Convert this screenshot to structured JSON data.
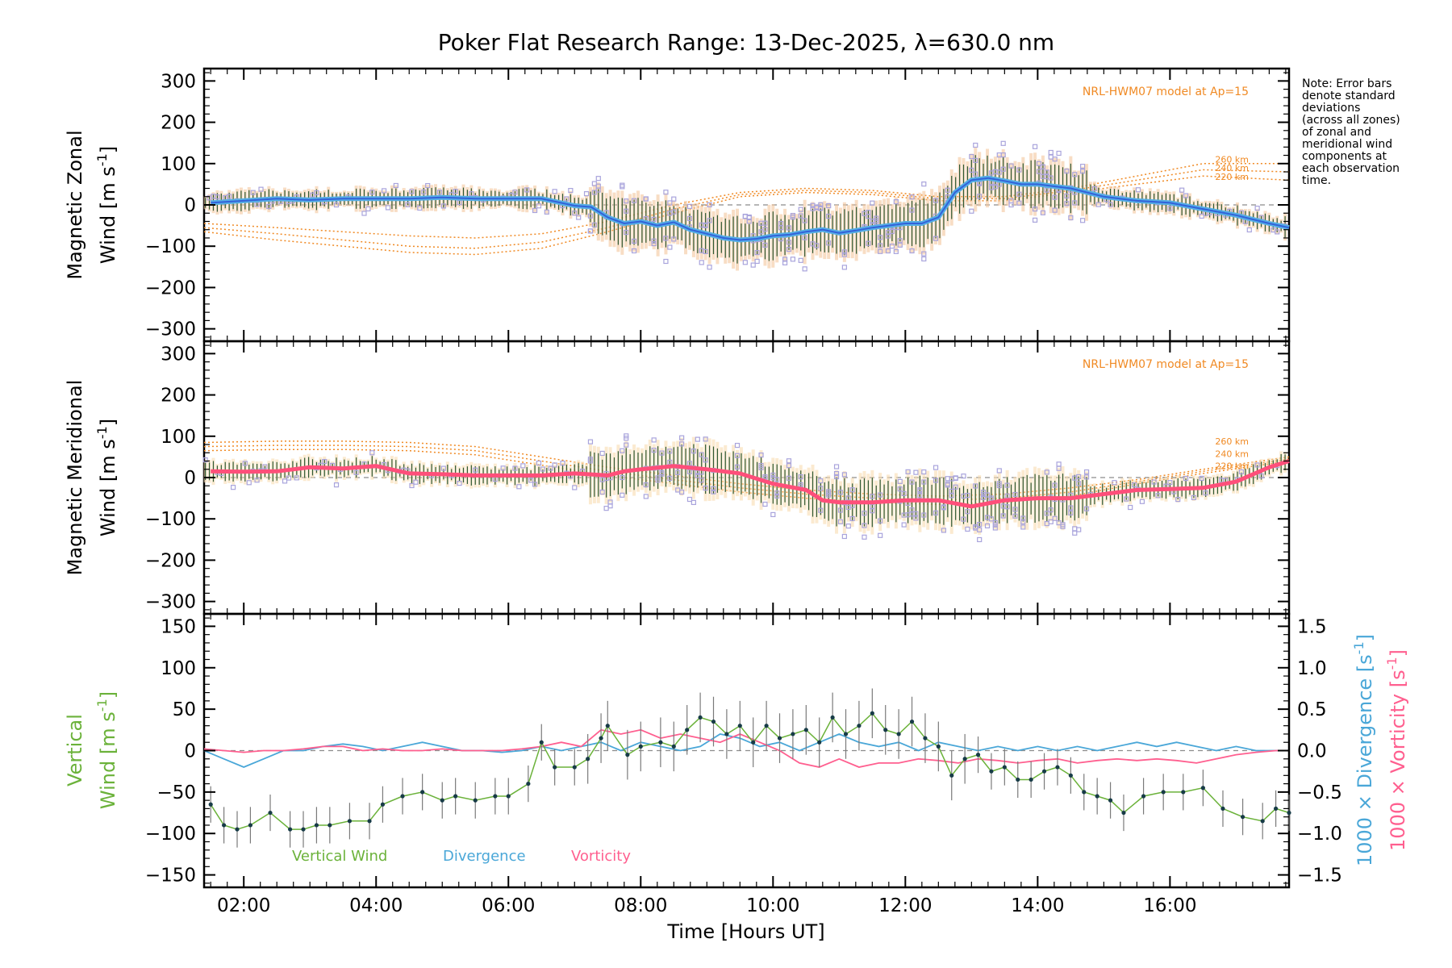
{
  "colors": {
    "zonal": "#2a4fd6",
    "zonal_light": "#55aee6",
    "meridional": "#ff4f7a",
    "model": "#f08a24",
    "samples": "#a9a4dc",
    "errorbar": "#2f5a36",
    "fill_zonal": "#f4c69d",
    "fill_merid": "#f8dcb0",
    "vertical": "#6bb23a",
    "vertical_point": "#173b47",
    "divergence": "#4aa7d8",
    "vorticity": "#ff5f8f",
    "zero_line": "#8c8c8c",
    "axis": "#000000"
  },
  "chart_data": [
    {
      "type": "line",
      "panel": "zonal",
      "title": "Poker Flat Research Range: 13-Dec-2025, λ=630.0 nm",
      "ylabel_line1": "Magnetic Zonal",
      "ylabel_line2": "Wind [m s",
      "ylabel_exp": "-1",
      "ylabel_close": "]",
      "ylim": [
        -330,
        330
      ],
      "yticks": [
        300,
        200,
        100,
        0,
        -100,
        -200,
        -300
      ],
      "ytick_labels": [
        "300",
        "200",
        "100",
        "0",
        "−100",
        "−200",
        "−300"
      ],
      "xlim": [
        1.4,
        17.8
      ],
      "model_label": "NRL-HWM07 model at Ap=15",
      "altitude_labels": [
        "260 km",
        "240 km",
        "220 km"
      ],
      "altitude_label_values": [
        110,
        90,
        68
      ],
      "series": [
        {
          "name": "Zonal wind",
          "x": [
            1.5,
            2.0,
            2.5,
            3.0,
            3.5,
            4.0,
            4.5,
            5.0,
            5.5,
            6.0,
            6.5,
            7.0,
            7.25,
            7.5,
            7.75,
            8.0,
            8.25,
            8.5,
            8.75,
            9.0,
            9.25,
            9.5,
            9.75,
            10.0,
            10.25,
            10.5,
            10.75,
            11.0,
            11.25,
            11.5,
            11.75,
            12.0,
            12.25,
            12.5,
            12.75,
            13.0,
            13.25,
            13.5,
            13.75,
            14.0,
            14.25,
            14.5,
            15.0,
            15.5,
            16.0,
            16.5,
            17.0,
            17.5,
            17.8
          ],
          "values": [
            5,
            10,
            15,
            12,
            15,
            15,
            15,
            18,
            15,
            15,
            15,
            -2,
            -5,
            -30,
            -45,
            -40,
            -50,
            -42,
            -60,
            -70,
            -80,
            -85,
            -82,
            -75,
            -72,
            -65,
            -60,
            -68,
            -62,
            -55,
            -50,
            -45,
            -45,
            -30,
            30,
            60,
            65,
            58,
            50,
            50,
            45,
            40,
            20,
            10,
            5,
            -10,
            -25,
            -45,
            -55
          ]
        },
        {
          "name": "260 km",
          "x": [
            1.4,
            2.5,
            3.5,
            4.5,
            5.5,
            6.5,
            7.5,
            8.5,
            9.5,
            10.5,
            11.5,
            12.5,
            13.5,
            14.5,
            15.5,
            16.5,
            17.8
          ],
          "values": [
            -45,
            -55,
            -65,
            -75,
            -80,
            -70,
            -40,
            0,
            30,
            40,
            35,
            20,
            20,
            40,
            70,
            100,
            100
          ]
        },
        {
          "name": "240 km",
          "x": [
            1.4,
            2.5,
            3.5,
            4.5,
            5.5,
            6.5,
            7.5,
            8.5,
            9.5,
            10.5,
            11.5,
            12.5,
            13.5,
            14.5,
            15.5,
            16.5,
            17.8
          ],
          "values": [
            -55,
            -70,
            -85,
            -100,
            -105,
            -90,
            -55,
            -10,
            25,
            35,
            30,
            15,
            15,
            35,
            60,
            85,
            80
          ]
        },
        {
          "name": "220 km",
          "x": [
            1.4,
            2.5,
            3.5,
            4.5,
            5.5,
            6.5,
            7.5,
            8.5,
            9.5,
            10.5,
            11.5,
            12.5,
            13.5,
            14.5,
            15.5,
            16.5,
            17.8
          ],
          "values": [
            -65,
            -85,
            -100,
            -115,
            -120,
            -105,
            -65,
            -20,
            20,
            30,
            25,
            10,
            10,
            30,
            50,
            70,
            60
          ]
        }
      ]
    },
    {
      "type": "line",
      "panel": "meridional",
      "ylabel_line1": "Magnetic Meridional",
      "ylabel_line2": "Wind [m s",
      "ylabel_exp": "-1",
      "ylabel_close": "]",
      "ylim": [
        -330,
        330
      ],
      "yticks": [
        300,
        200,
        100,
        0,
        -100,
        -200,
        -300
      ],
      "ytick_labels": [
        "300",
        "200",
        "100",
        "0",
        "−100",
        "−200",
        "−300"
      ],
      "xlim": [
        1.4,
        17.8
      ],
      "model_label": "NRL-HWM07 model at Ap=15",
      "altitude_labels": [
        "260 km",
        "240 km",
        "220 km"
      ],
      "altitude_label_values": [
        88,
        58,
        28
      ],
      "series": [
        {
          "name": "Meridional wind",
          "x": [
            1.5,
            2.0,
            2.5,
            3.0,
            3.5,
            4.0,
            4.5,
            5.0,
            5.5,
            6.0,
            6.5,
            7.0,
            7.5,
            7.75,
            8.0,
            8.5,
            9.0,
            9.5,
            10.0,
            10.5,
            10.75,
            11.0,
            11.5,
            12.0,
            12.5,
            13.0,
            13.5,
            14.0,
            14.5,
            15.0,
            15.5,
            16.0,
            16.5,
            17.0,
            17.5,
            17.8
          ],
          "values": [
            15,
            14,
            15,
            25,
            22,
            28,
            10,
            8,
            5,
            5,
            5,
            10,
            5,
            15,
            20,
            28,
            20,
            10,
            -15,
            -30,
            -55,
            -60,
            -60,
            -55,
            -55,
            -70,
            -55,
            -50,
            -50,
            -40,
            -30,
            -28,
            -25,
            -10,
            25,
            40
          ]
        },
        {
          "name": "260 km",
          "x": [
            1.4,
            2.5,
            3.5,
            4.5,
            5.5,
            6.5,
            7.5,
            8.5,
            9.5,
            10.5,
            11.5,
            12.5,
            13.5,
            14.5,
            15.5,
            16.5,
            17.8
          ],
          "values": [
            85,
            88,
            88,
            85,
            75,
            50,
            25,
            5,
            -15,
            -30,
            -40,
            -45,
            -40,
            -25,
            -5,
            20,
            50
          ]
        },
        {
          "name": "240 km",
          "x": [
            1.4,
            2.5,
            3.5,
            4.5,
            5.5,
            6.5,
            7.5,
            8.5,
            9.5,
            10.5,
            11.5,
            12.5,
            13.5,
            14.5,
            15.5,
            16.5,
            17.8
          ],
          "values": [
            75,
            78,
            78,
            75,
            65,
            40,
            15,
            -5,
            -25,
            -40,
            -50,
            -55,
            -50,
            -35,
            -10,
            15,
            45
          ]
        },
        {
          "name": "220 km",
          "x": [
            1.4,
            2.5,
            3.5,
            4.5,
            5.5,
            6.5,
            7.5,
            8.5,
            9.5,
            10.5,
            11.5,
            12.5,
            13.5,
            14.5,
            15.5,
            16.5,
            17.8
          ],
          "values": [
            65,
            68,
            68,
            65,
            55,
            30,
            5,
            -15,
            -35,
            -50,
            -60,
            -65,
            -60,
            -45,
            -15,
            10,
            40
          ]
        }
      ]
    },
    {
      "type": "line",
      "panel": "vertical",
      "ylabel_line1": "Vertical",
      "ylabel_line2": "Wind [m s",
      "ylabel_exp": "-1",
      "ylabel_close": "]",
      "ylim": [
        -165,
        165
      ],
      "yticks": [
        150,
        100,
        50,
        0,
        -50,
        -100,
        -150
      ],
      "ytick_labels": [
        "150",
        "100",
        "50",
        "0",
        "−50",
        "−100",
        "−150"
      ],
      "right_ylim": [
        -1.65,
        1.65
      ],
      "right_yticks": [
        1.5,
        1.0,
        0.5,
        0.0,
        -0.5,
        -1.0,
        -1.5
      ],
      "right_ytick_labels": [
        "1.5",
        "1.0",
        "0.5",
        "0.0",
        "−0.5",
        "−1.0",
        "−1.5"
      ],
      "right_label1": "1000 × Divergence [s",
      "right_label2": "1000 × Vorticity [s",
      "right_label_exp": "-1",
      "right_label_close": "]",
      "xlim": [
        1.4,
        17.8
      ],
      "xticks": [
        2,
        4,
        6,
        8,
        10,
        12,
        14,
        16
      ],
      "xtick_labels": [
        "02:00",
        "04:00",
        "06:00",
        "08:00",
        "10:00",
        "12:00",
        "14:00",
        "16:00"
      ],
      "xlabel": "Time [Hours UT]",
      "legend": [
        "Vertical Wind",
        "Divergence",
        "Vorticity"
      ],
      "series": [
        {
          "name": "Vertical Wind",
          "x": [
            1.5,
            1.7,
            1.9,
            2.1,
            2.4,
            2.7,
            2.9,
            3.1,
            3.3,
            3.6,
            3.9,
            4.1,
            4.4,
            4.7,
            5.0,
            5.2,
            5.5,
            5.8,
            6.0,
            6.3,
            6.5,
            6.7,
            7.0,
            7.2,
            7.4,
            7.5,
            7.8,
            8.0,
            8.3,
            8.5,
            8.7,
            8.9,
            9.1,
            9.3,
            9.5,
            9.7,
            9.9,
            10.1,
            10.3,
            10.5,
            10.7,
            10.9,
            11.1,
            11.3,
            11.5,
            11.7,
            11.9,
            12.1,
            12.3,
            12.5,
            12.7,
            12.9,
            13.1,
            13.3,
            13.5,
            13.7,
            13.9,
            14.1,
            14.3,
            14.5,
            14.7,
            14.9,
            15.1,
            15.3,
            15.6,
            15.9,
            16.2,
            16.5,
            16.8,
            17.1,
            17.4,
            17.6,
            17.8
          ],
          "values": [
            -65,
            -90,
            -95,
            -90,
            -75,
            -95,
            -95,
            -90,
            -90,
            -85,
            -85,
            -65,
            -55,
            -50,
            -60,
            -55,
            -60,
            -55,
            -55,
            -40,
            10,
            -20,
            -20,
            -10,
            15,
            30,
            -5,
            5,
            10,
            5,
            25,
            40,
            35,
            20,
            30,
            10,
            30,
            15,
            20,
            25,
            10,
            40,
            20,
            30,
            45,
            25,
            20,
            35,
            15,
            5,
            -30,
            -10,
            -5,
            -25,
            -20,
            -35,
            -35,
            -25,
            -20,
            -30,
            -50,
            -55,
            -60,
            -75,
            -55,
            -50,
            -50,
            -45,
            -70,
            -80,
            -85,
            -70,
            -75
          ]
        },
        {
          "name": "Divergence",
          "x": [
            1.4,
            1.7,
            2.0,
            2.3,
            2.6,
            2.9,
            3.2,
            3.5,
            3.8,
            4.1,
            4.4,
            4.7,
            5.0,
            5.3,
            5.6,
            5.9,
            6.2,
            6.5,
            6.8,
            7.1,
            7.4,
            7.7,
            8.0,
            8.3,
            8.6,
            8.9,
            9.2,
            9.5,
            9.8,
            10.1,
            10.4,
            10.7,
            11.0,
            11.3,
            11.6,
            11.9,
            12.2,
            12.5,
            12.8,
            13.1,
            13.4,
            13.7,
            14.0,
            14.3,
            14.6,
            14.9,
            15.2,
            15.5,
            15.8,
            16.1,
            16.4,
            16.7,
            17.0,
            17.3,
            17.6,
            17.8
          ],
          "values": [
            0.0,
            -0.1,
            -0.2,
            -0.1,
            0.0,
            0.0,
            0.05,
            0.08,
            0.05,
            0.0,
            0.05,
            0.1,
            0.05,
            0.0,
            0.0,
            -0.02,
            0.0,
            0.05,
            0.0,
            0.05,
            0.1,
            0.0,
            0.1,
            0.05,
            0.0,
            0.05,
            0.2,
            0.15,
            0.05,
            0.1,
            0.0,
            0.1,
            0.2,
            0.1,
            0.05,
            0.1,
            0.0,
            0.1,
            0.05,
            0.0,
            0.05,
            0.0,
            0.05,
            0.0,
            0.05,
            0.0,
            0.05,
            0.1,
            0.05,
            0.1,
            0.05,
            0.0,
            0.05,
            0.0,
            0.0,
            0.0
          ]
        },
        {
          "name": "Vorticity",
          "x": [
            1.4,
            1.7,
            2.0,
            2.3,
            2.6,
            2.9,
            3.2,
            3.5,
            3.8,
            4.1,
            4.4,
            4.7,
            5.0,
            5.3,
            5.6,
            5.9,
            6.2,
            6.5,
            6.8,
            7.1,
            7.4,
            7.7,
            8.0,
            8.3,
            8.6,
            8.9,
            9.2,
            9.5,
            9.8,
            10.1,
            10.4,
            10.7,
            11.0,
            11.3,
            11.6,
            11.9,
            12.2,
            12.5,
            12.8,
            13.1,
            13.4,
            13.7,
            14.0,
            14.3,
            14.6,
            14.9,
            15.2,
            15.5,
            15.8,
            16.1,
            16.4,
            16.7,
            17.0,
            17.3,
            17.6,
            17.8
          ],
          "values": [
            0.02,
            0.0,
            -0.02,
            0.0,
            0.0,
            0.02,
            0.05,
            0.05,
            0.0,
            0.02,
            0.0,
            0.0,
            0.02,
            0.0,
            0.0,
            0.0,
            0.02,
            0.05,
            0.1,
            0.05,
            0.25,
            0.2,
            0.25,
            0.15,
            0.2,
            0.15,
            0.1,
            0.2,
            0.1,
            0.0,
            -0.15,
            -0.2,
            -0.1,
            -0.2,
            -0.15,
            -0.15,
            -0.1,
            -0.12,
            -0.15,
            -0.1,
            -0.12,
            -0.15,
            -0.12,
            -0.1,
            -0.15,
            -0.12,
            -0.1,
            -0.12,
            -0.1,
            -0.12,
            -0.15,
            -0.1,
            -0.05,
            -0.02,
            0.0,
            0.0
          ]
        }
      ]
    }
  ],
  "note": [
    "Note: Error bars",
    "denote standard",
    "deviations",
    "(across all zones)",
    "of zonal and",
    "meridional wind",
    "components at",
    "each observation",
    "time."
  ]
}
